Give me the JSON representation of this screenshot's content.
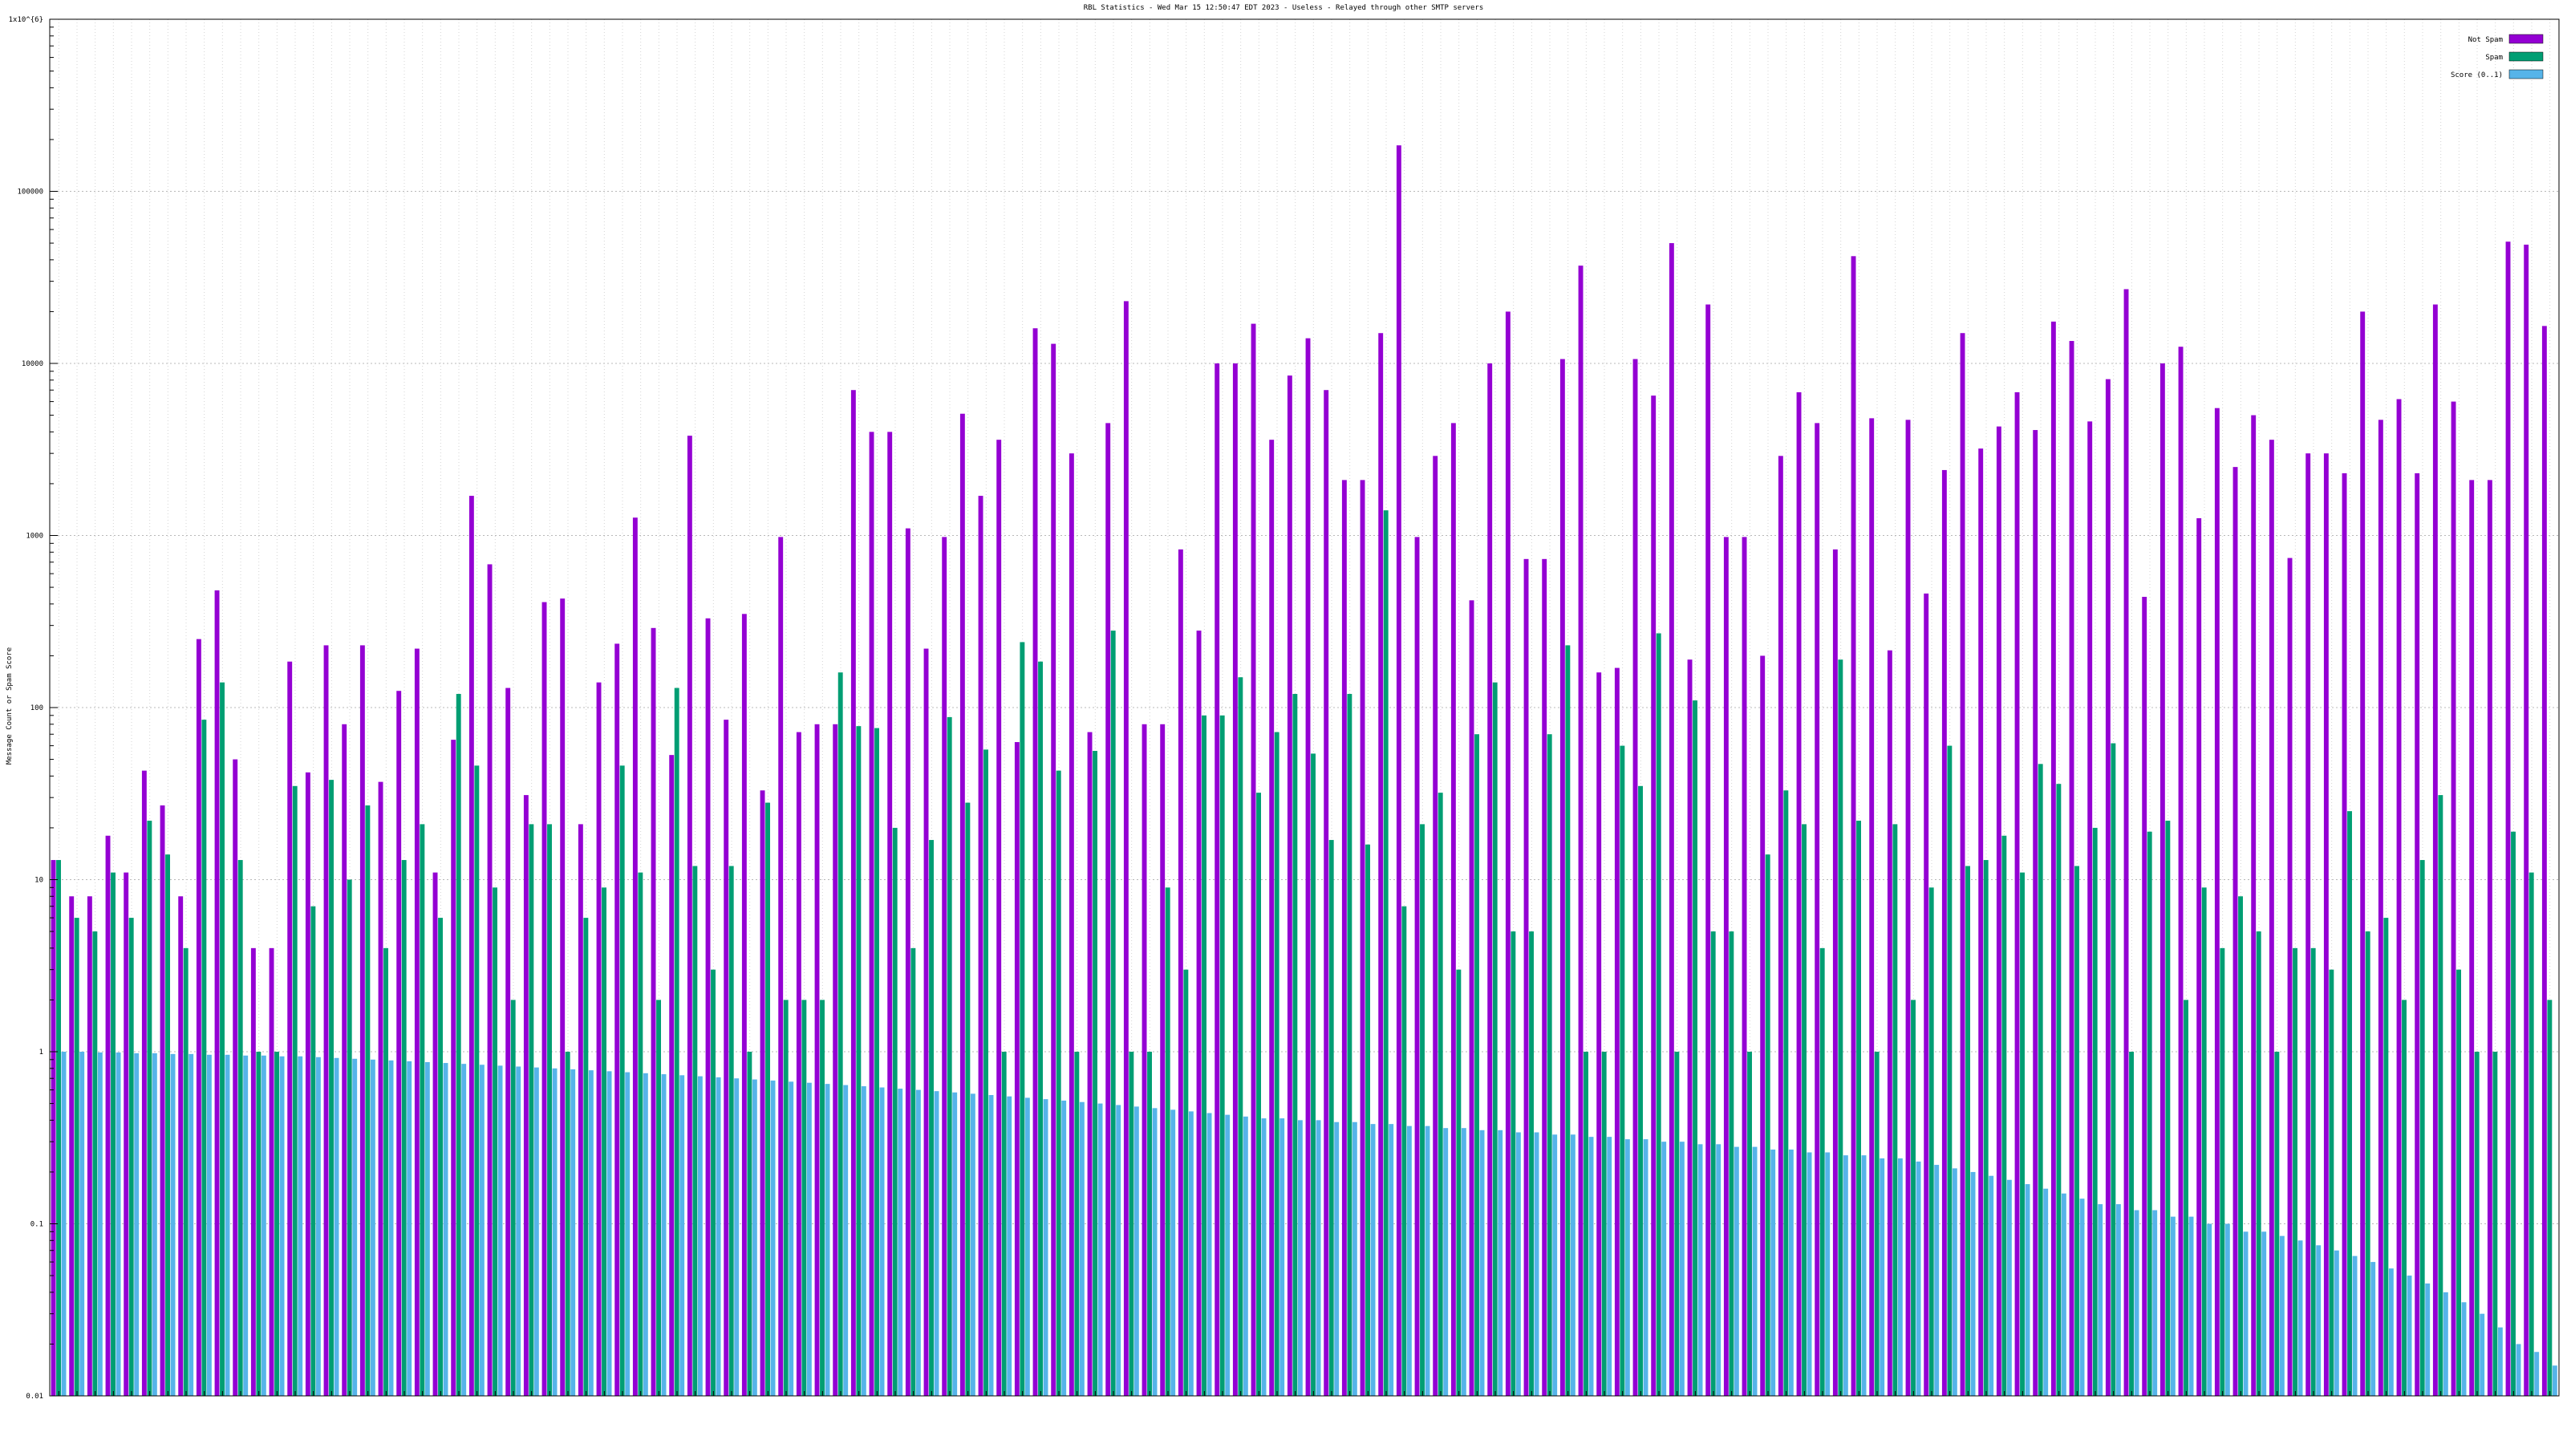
{
  "chart_data": {
    "type": "bar",
    "title": "RBL Statistics - Wed Mar 15 12:50:47 EDT 2023 - Useless - Relayed through other SMTP servers",
    "ylabel": "Message Count or Spam Score",
    "xlabel": "",
    "yscale": "log",
    "ylim": [
      0.01,
      1000000
    ],
    "yticks": [
      "0.01",
      "0.1",
      "1",
      "10",
      "100",
      "1000",
      "10000",
      "100000",
      "1x10^{6}"
    ],
    "grid": true,
    "legend_position": "top-right",
    "series": [
      {
        "name": "Not Spam",
        "color": "#9400d3",
        "values": [
          13,
          8,
          8,
          18,
          11,
          43,
          27,
          8,
          250,
          480,
          50,
          4,
          4,
          185,
          42,
          230,
          80,
          230,
          37,
          125,
          220,
          11,
          65,
          1700,
          680,
          130,
          31,
          410,
          430,
          21,
          140,
          235,
          1270,
          290,
          53,
          3800,
          330,
          85,
          350,
          33,
          980,
          72,
          80,
          80,
          7000,
          4000,
          4000,
          1100,
          220,
          980,
          5100,
          1700,
          3600,
          63,
          16000,
          13000,
          3000,
          72,
          4500,
          23000,
          80,
          80,
          830,
          280,
          10000,
          10000,
          17000,
          3600,
          8500,
          14000,
          7000,
          2100,
          2100,
          15000,
          185000,
          980,
          2900,
          4500,
          420,
          10000,
          20000,
          730,
          730,
          10600,
          37000,
          160,
          170,
          10600,
          6500,
          50000,
          190,
          22000,
          980,
          980,
          200,
          2900,
          6800,
          4500,
          830,
          42000,
          4800,
          215,
          4700,
          460,
          2400,
          15000,
          3200,
          4300,
          6800,
          4100,
          17500,
          13500,
          4600,
          8100,
          27000,
          440,
          10000,
          12500,
          1260,
          5500,
          2500,
          5000,
          3600,
          740,
          3000,
          3000,
          2300,
          20000,
          4700,
          6200,
          2300,
          22000,
          6000,
          2100,
          2100,
          51000,
          49000,
          16500
        ]
      },
      {
        "name": "Spam",
        "color": "#009e73",
        "values": [
          13,
          6,
          5,
          11,
          6,
          22,
          14,
          4,
          85,
          140,
          13,
          1,
          1,
          35,
          7,
          38,
          10,
          27,
          4,
          13,
          21,
          6,
          120,
          46,
          9,
          2,
          21,
          21,
          1,
          6,
          9,
          46,
          11,
          2,
          130,
          12,
          3,
          12,
          1,
          28,
          2,
          2,
          2,
          160,
          78,
          76,
          20,
          4,
          17,
          88,
          28,
          57,
          1,
          240,
          185,
          43,
          1,
          56,
          280,
          1,
          1,
          9,
          3,
          90,
          90,
          150,
          32,
          72,
          120,
          54,
          17,
          120,
          16,
          1400,
          7,
          21,
          32,
          3,
          70,
          140,
          5,
          5,
          70,
          230,
          1,
          1,
          60,
          35,
          270,
          1,
          110,
          5,
          5,
          1,
          14,
          33,
          21,
          4,
          190,
          22,
          1,
          21,
          2,
          9,
          60,
          12,
          13,
          18,
          11,
          47,
          36,
          12,
          20,
          62,
          1,
          19,
          22,
          2,
          9,
          4,
          8,
          5,
          1,
          4,
          4,
          3,
          25,
          5,
          6,
          2,
          13,
          31,
          3,
          1,
          1,
          19,
          11,
          2
        ]
      },
      {
        "name": "Score (0..1)",
        "color": "#56b4e9",
        "values": [
          1.0,
          1.0,
          0.99,
          0.99,
          0.98,
          0.98,
          0.97,
          0.97,
          0.96,
          0.96,
          0.95,
          0.95,
          0.94,
          0.94,
          0.93,
          0.92,
          0.91,
          0.9,
          0.89,
          0.88,
          0.87,
          0.86,
          0.85,
          0.84,
          0.83,
          0.82,
          0.81,
          0.8,
          0.79,
          0.78,
          0.77,
          0.76,
          0.75,
          0.74,
          0.73,
          0.72,
          0.71,
          0.7,
          0.69,
          0.68,
          0.67,
          0.66,
          0.65,
          0.64,
          0.63,
          0.62,
          0.61,
          0.6,
          0.59,
          0.58,
          0.57,
          0.56,
          0.55,
          0.54,
          0.53,
          0.52,
          0.51,
          0.5,
          0.49,
          0.48,
          0.47,
          0.46,
          0.45,
          0.44,
          0.43,
          0.42,
          0.41,
          0.41,
          0.4,
          0.4,
          0.39,
          0.39,
          0.38,
          0.38,
          0.37,
          0.37,
          0.36,
          0.36,
          0.35,
          0.35,
          0.34,
          0.34,
          0.33,
          0.33,
          0.32,
          0.32,
          0.31,
          0.31,
          0.3,
          0.3,
          0.29,
          0.29,
          0.28,
          0.28,
          0.27,
          0.27,
          0.26,
          0.26,
          0.25,
          0.25,
          0.24,
          0.24,
          0.23,
          0.22,
          0.21,
          0.2,
          0.19,
          0.18,
          0.17,
          0.16,
          0.15,
          0.14,
          0.13,
          0.13,
          0.12,
          0.12,
          0.11,
          0.11,
          0.1,
          0.1,
          0.09,
          0.09,
          0.085,
          0.08,
          0.075,
          0.07,
          0.065,
          0.06,
          0.055,
          0.05,
          0.045,
          0.04,
          0.035,
          0.03,
          0.025,
          0.02,
          0.018,
          0.015
        ]
      }
    ]
  }
}
